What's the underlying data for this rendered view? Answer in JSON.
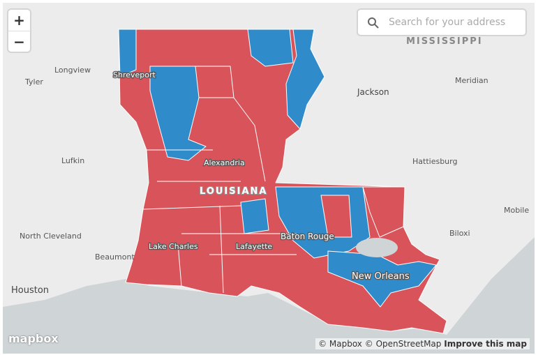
{
  "zoom_controls": {
    "zoom_in": "+",
    "zoom_out": "−"
  },
  "search": {
    "placeholder": "Search for your address"
  },
  "labels": {
    "states": [
      "MISSISSIPPI",
      "LOUISIANA"
    ],
    "cities": [
      "Longview",
      "Tyler",
      "Shreveport",
      "Jackson",
      "Meridian",
      "Lufkin",
      "Alexandria",
      "Hattiesburg",
      "Houston",
      "North Cleveland",
      "Beaumont",
      "Lake Charles",
      "Lafayette",
      "Baton Rouge",
      "New Orleans",
      "Biloxi",
      "Mobile"
    ]
  },
  "attribution": {
    "logo": "mapbox",
    "mapbox": "© Mapbox",
    "osm": "© OpenStreetMap",
    "improve": "Improve this map"
  }
}
